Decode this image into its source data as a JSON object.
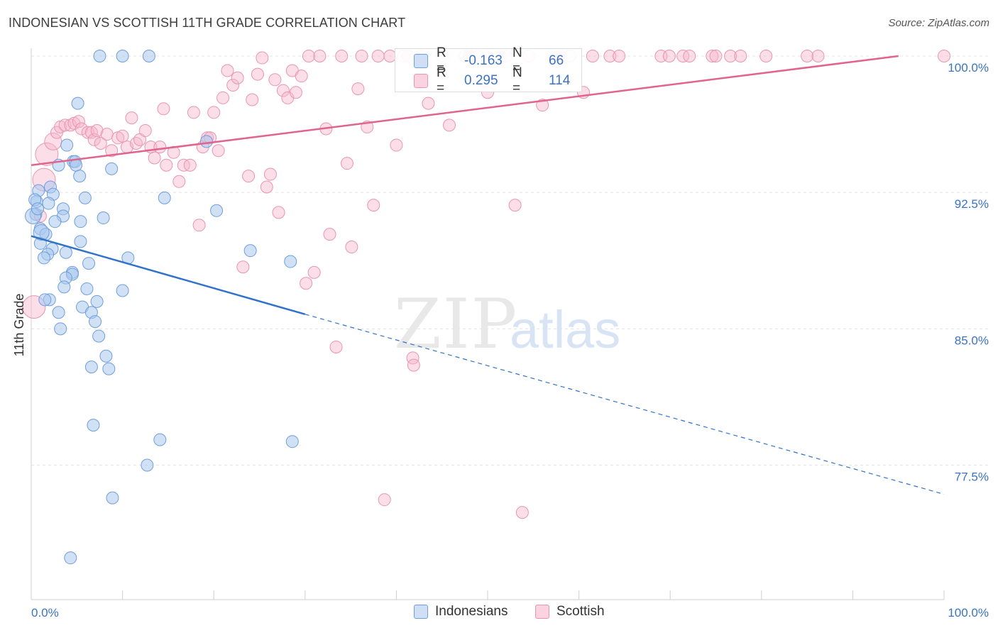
{
  "title": "INDONESIAN VS SCOTTISH 11TH GRADE CORRELATION CHART",
  "source": "Source: ZipAtlas.com",
  "watermark": {
    "zip": "ZIP",
    "atlas": "atlas"
  },
  "colors": {
    "blue_fill": "#a9c8ee",
    "blue_stroke": "#5b8fd6",
    "blue_line": "#2f73c9",
    "pink_fill": "#f6b6cb",
    "pink_stroke": "#e48aa8",
    "pink_line": "#e0648c",
    "value_text": "#3a73c4",
    "grid": "#e6e6e6"
  },
  "stats": [
    {
      "r_label": "R =",
      "r_value": "-0.163",
      "n_label": "N =",
      "n_value": "66",
      "series": "blue"
    },
    {
      "r_label": "R =",
      "r_value": "0.295",
      "n_label": "N =",
      "n_value": "114",
      "series": "pink"
    }
  ],
  "legend": [
    {
      "label": "Indonesians",
      "series": "blue"
    },
    {
      "label": "Scottish",
      "series": "pink"
    }
  ],
  "chart_data": {
    "type": "scatter",
    "title": "INDONESIAN VS SCOTTISH 11TH GRADE CORRELATION CHART",
    "xlabel": "",
    "ylabel": "11th Grade",
    "xlim": [
      0,
      100
    ],
    "ylim": [
      70.4,
      101.0
    ],
    "x_tick_labels": [
      "0.0%",
      "100.0%"
    ],
    "y_ticks": [
      77.5,
      85.0,
      92.5,
      100.0
    ],
    "y_tick_labels": [
      "77.5%",
      "85.0%",
      "92.5%",
      "100.0%"
    ],
    "grid": true,
    "legend_position": "bottom",
    "series": [
      {
        "name": "Indonesians",
        "color": "#a9c8ee",
        "trend": {
          "x": [
            0,
            30,
            100
          ],
          "y": [
            90.1,
            85.8,
            75.9
          ],
          "solid_until_x": 30
        },
        "points": [
          [
            7.5,
            100
          ],
          [
            10,
            100
          ],
          [
            12.9,
            100
          ],
          [
            5.1,
            97.4
          ],
          [
            3.9,
            95.1
          ],
          [
            4.6,
            94.2
          ],
          [
            4.8,
            94.2
          ],
          [
            3.0,
            94.0
          ],
          [
            4.9,
            94.0
          ],
          [
            8.8,
            93.8
          ],
          [
            5.3,
            93.4
          ],
          [
            2.1,
            92.8
          ],
          [
            0.8,
            92.6
          ],
          [
            2.4,
            92.4
          ],
          [
            5.9,
            92.2
          ],
          [
            14.6,
            92.2
          ],
          [
            0.6,
            92.0
          ],
          [
            1.9,
            91.9
          ],
          [
            3.5,
            91.6
          ],
          [
            20.3,
            91.5
          ],
          [
            0.5,
            91.3
          ],
          [
            3.5,
            91.2
          ],
          [
            7.9,
            91.1
          ],
          [
            5.4,
            90.9
          ],
          [
            2.6,
            90.9
          ],
          [
            1.0,
            90.5
          ],
          [
            1.6,
            90.2
          ],
          [
            5.4,
            89.8
          ],
          [
            1.0,
            89.7
          ],
          [
            2.3,
            89.4
          ],
          [
            3.8,
            89.2
          ],
          [
            24.0,
            89.3
          ],
          [
            1.8,
            89.1
          ],
          [
            1.4,
            88.9
          ],
          [
            10.6,
            88.9
          ],
          [
            28.4,
            88.7
          ],
          [
            6.3,
            88.6
          ],
          [
            4.5,
            88.1
          ],
          [
            4.5,
            88.0
          ],
          [
            3.8,
            87.8
          ],
          [
            3.6,
            87.3
          ],
          [
            6.1,
            87.2
          ],
          [
            10.0,
            87.1
          ],
          [
            2.0,
            86.6
          ],
          [
            1.5,
            86.6
          ],
          [
            7.2,
            86.5
          ],
          [
            5.6,
            86.2
          ],
          [
            6.6,
            85.9
          ],
          [
            3.0,
            85.9
          ],
          [
            7.0,
            85.4
          ],
          [
            3.2,
            85.0
          ],
          [
            7.4,
            84.6
          ],
          [
            8.2,
            83.5
          ],
          [
            6.6,
            82.9
          ],
          [
            8.5,
            82.8
          ],
          [
            6.8,
            79.7
          ],
          [
            14.1,
            78.9
          ],
          [
            28.6,
            78.8
          ],
          [
            12.7,
            77.5
          ],
          [
            8.9,
            75.7
          ],
          [
            4.3,
            72.4
          ],
          [
            0.2,
            91.2
          ],
          [
            1.1,
            90.3
          ],
          [
            0.4,
            92.1
          ],
          [
            0.7,
            91.6
          ],
          [
            19.2,
            95.3
          ]
        ]
      },
      {
        "name": "Scottish",
        "color": "#f6b6cb",
        "trend": {
          "x": [
            0,
            95
          ],
          "y": [
            94.0,
            100.0
          ],
          "solid_until_x": 95
        },
        "points": [
          [
            1.4,
            93.2
          ],
          [
            1.0,
            91.2
          ],
          [
            0.3,
            86.2
          ],
          [
            1.7,
            94.6
          ],
          [
            2.4,
            95.3
          ],
          [
            2.8,
            95.8
          ],
          [
            3.2,
            96.1
          ],
          [
            3.7,
            96.2
          ],
          [
            4.3,
            96.2
          ],
          [
            4.7,
            96.3
          ],
          [
            5.2,
            96.4
          ],
          [
            5.5,
            96.0
          ],
          [
            6.2,
            95.8
          ],
          [
            6.6,
            95.8
          ],
          [
            6.9,
            95.4
          ],
          [
            7.2,
            95.9
          ],
          [
            7.6,
            95.2
          ],
          [
            8.3,
            95.7
          ],
          [
            8.8,
            94.8
          ],
          [
            9.5,
            95.5
          ],
          [
            10.0,
            95.6
          ],
          [
            10.5,
            95.0
          ],
          [
            11.0,
            96.6
          ],
          [
            11.5,
            95.2
          ],
          [
            11.9,
            95.4
          ],
          [
            12.5,
            95.9
          ],
          [
            13.1,
            95.0
          ],
          [
            13.5,
            94.4
          ],
          [
            14.1,
            95.0
          ],
          [
            14.5,
            97.1
          ],
          [
            14.8,
            94.0
          ],
          [
            15.6,
            94.7
          ],
          [
            16.2,
            93.1
          ],
          [
            16.7,
            94.0
          ],
          [
            17.4,
            94.0
          ],
          [
            17.8,
            96.9
          ],
          [
            18.4,
            90.7
          ],
          [
            18.8,
            95.0
          ],
          [
            19.3,
            95.5
          ],
          [
            19.6,
            95.5
          ],
          [
            20.0,
            96.9
          ],
          [
            20.5,
            94.8
          ],
          [
            21.0,
            97.7
          ],
          [
            21.5,
            99.2
          ],
          [
            22.1,
            98.4
          ],
          [
            22.6,
            98.8
          ],
          [
            23.2,
            88.4
          ],
          [
            23.8,
            93.4
          ],
          [
            24.2,
            97.6
          ],
          [
            24.8,
            99.0
          ],
          [
            25.3,
            99.9
          ],
          [
            25.8,
            92.8
          ],
          [
            26.2,
            93.5
          ],
          [
            26.7,
            98.7
          ],
          [
            27.1,
            91.4
          ],
          [
            27.6,
            98.1
          ],
          [
            28.1,
            97.7
          ],
          [
            28.6,
            99.2
          ],
          [
            29.0,
            98.0
          ],
          [
            29.6,
            98.9
          ],
          [
            30.1,
            87.5
          ],
          [
            30.4,
            100
          ],
          [
            31.0,
            88.1
          ],
          [
            31.6,
            100
          ],
          [
            32.3,
            96.0
          ],
          [
            32.7,
            90.2
          ],
          [
            33.4,
            84.0
          ],
          [
            34.0,
            100
          ],
          [
            34.6,
            94.1
          ],
          [
            35.1,
            89.5
          ],
          [
            35.8,
            98.2
          ],
          [
            36.2,
            100
          ],
          [
            36.8,
            96.1
          ],
          [
            37.5,
            91.8
          ],
          [
            38.0,
            100
          ],
          [
            38.7,
            75.6
          ],
          [
            39.3,
            100
          ],
          [
            40.0,
            95.1
          ],
          [
            40.8,
            100
          ],
          [
            41.3,
            100
          ],
          [
            41.8,
            83.4
          ],
          [
            41.9,
            83.0
          ],
          [
            42.7,
            100
          ],
          [
            43.5,
            97.4
          ],
          [
            45.0,
            100
          ],
          [
            45.8,
            96.2
          ],
          [
            47.5,
            100
          ],
          [
            48.0,
            100
          ],
          [
            49.0,
            100
          ],
          [
            50.0,
            98.0
          ],
          [
            51.2,
            100
          ],
          [
            52.0,
            100
          ],
          [
            53.0,
            91.8
          ],
          [
            53.8,
            74.9
          ],
          [
            54.5,
            100
          ],
          [
            56.0,
            97.3
          ],
          [
            58.0,
            100
          ],
          [
            59.0,
            100
          ],
          [
            60.5,
            98.0
          ],
          [
            61.5,
            100
          ],
          [
            63.4,
            100
          ],
          [
            64.4,
            100
          ],
          [
            69.0,
            100
          ],
          [
            71.4,
            100
          ],
          [
            69.9,
            100
          ],
          [
            72.1,
            100
          ],
          [
            74.6,
            100
          ],
          [
            75.0,
            100
          ],
          [
            76.6,
            100
          ],
          [
            77.7,
            100
          ],
          [
            80.5,
            100
          ],
          [
            85.0,
            100
          ],
          [
            86.2,
            100
          ],
          [
            100.0,
            100
          ]
        ]
      }
    ]
  }
}
